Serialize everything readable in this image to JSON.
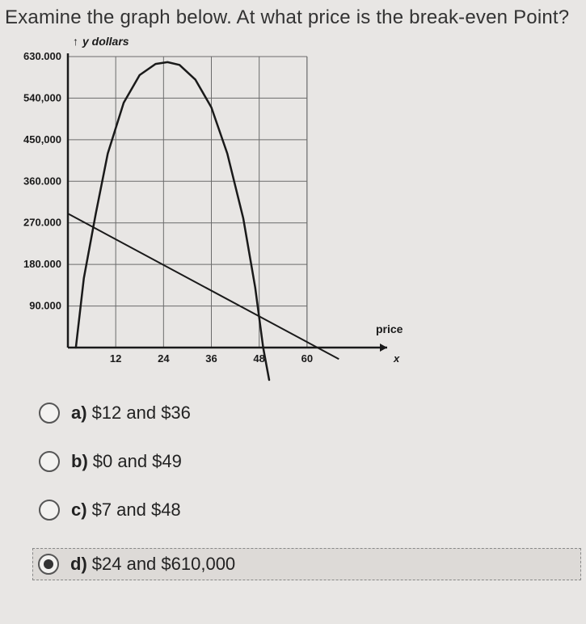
{
  "question": "Examine the graph below. At what price is the break-even Point?",
  "chart": {
    "type": "line",
    "background_color": "#e8e6e4",
    "grid_color": "#6b6b6b",
    "axis_color": "#1a1a1a",
    "curve_color": "#1a1a1a",
    "line_color": "#1a1a1a",
    "curve_width": 2.5,
    "line_width": 2,
    "grid_width": 1,
    "y_axis_title": "y dollars",
    "y_axis_title_fontsize": 14,
    "x_axis_title_right": "price",
    "x_axis_var": "x",
    "xlim": [
      0,
      72
    ],
    "ylim": [
      0,
      630000
    ],
    "x_ticks": [
      12,
      24,
      36,
      48,
      60
    ],
    "x_tick_labels": [
      "12",
      "24",
      "36",
      "48",
      "60"
    ],
    "y_ticks": [
      90000,
      180000,
      270000,
      360000,
      450000,
      540000,
      630000
    ],
    "y_tick_labels": [
      "90.000",
      "180.000",
      "270.000",
      "360.000",
      "450,000",
      "540,000",
      "630.000"
    ],
    "tick_fontsize": 13,
    "parabola_points_price_dollars": [
      [
        2,
        0
      ],
      [
        4,
        150000
      ],
      [
        7,
        290000
      ],
      [
        10,
        420000
      ],
      [
        14,
        530000
      ],
      [
        18,
        590000
      ],
      [
        22,
        614000
      ],
      [
        25,
        618000
      ],
      [
        28,
        612000
      ],
      [
        32,
        580000
      ],
      [
        36,
        520000
      ],
      [
        40,
        420000
      ],
      [
        44,
        280000
      ],
      [
        47,
        130000
      ],
      [
        49,
        0
      ],
      [
        50.5,
        -70000
      ]
    ],
    "straight_line_points_price_dollars": [
      [
        0,
        290000
      ],
      [
        68,
        -25000
      ]
    ]
  },
  "options": {
    "a": {
      "letter": "a)",
      "text": "$12 and $36",
      "selected": false
    },
    "b": {
      "letter": "b)",
      "text": "$0 and $49",
      "selected": false
    },
    "c": {
      "letter": "c)",
      "text": "$7 and $48",
      "selected": false
    },
    "d": {
      "letter": "d)",
      "text": "$24 and $610,000",
      "selected": true
    }
  }
}
